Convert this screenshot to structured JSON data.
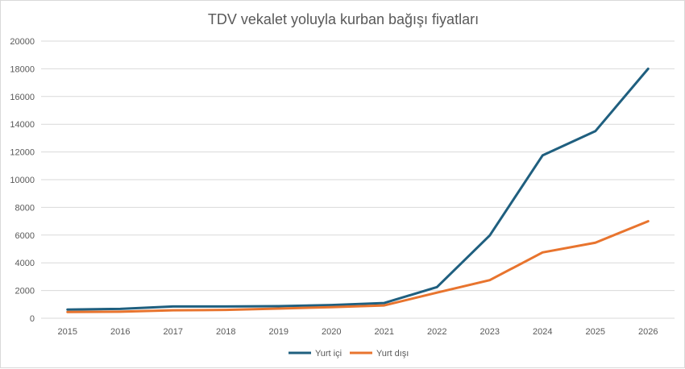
{
  "chart_data": {
    "type": "line",
    "title": "TDV vekalet yoluyla kurban bağışı fiyatları",
    "xlabel": "",
    "ylabel": "",
    "x": [
      "2015",
      "2016",
      "2017",
      "2018",
      "2019",
      "2020",
      "2021",
      "2022",
      "2023",
      "2024",
      "2025",
      "2026"
    ],
    "y_ticks": [
      "0",
      "2000",
      "4000",
      "6000",
      "8000",
      "10000",
      "12000",
      "14000",
      "16000",
      "18000",
      "20000"
    ],
    "ylim": [
      0,
      20000
    ],
    "grid": true,
    "legend_position": "bottom",
    "series": [
      {
        "name": "Yurt içi",
        "color": "#1f5f7f",
        "values": [
          625,
          675,
          850,
          850,
          875,
          950,
          1100,
          2250,
          5975,
          11750,
          13500,
          18000
        ]
      },
      {
        "name": "Yurt dışı",
        "color": "#e8742e",
        "values": [
          450,
          475,
          575,
          600,
          700,
          800,
          925,
          1850,
          2750,
          4750,
          5450,
          7000
        ]
      }
    ]
  }
}
